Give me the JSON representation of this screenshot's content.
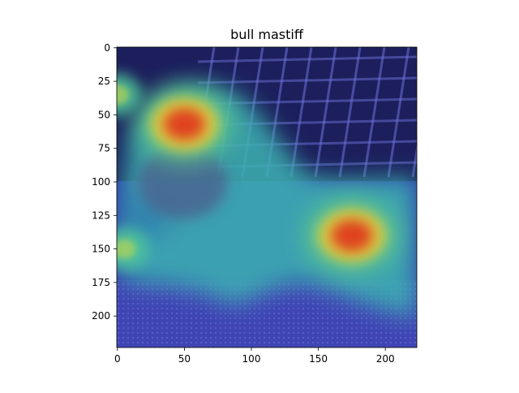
{
  "chart_data": {
    "type": "heatmap",
    "title": "bull mastiff",
    "xlabel": "",
    "ylabel": "",
    "image_extent": [
      0,
      224,
      224,
      0
    ],
    "xlim": [
      -0.5,
      223.5
    ],
    "ylim": [
      223.5,
      -0.5
    ],
    "x_ticks": [
      0,
      50,
      100,
      150,
      200
    ],
    "y_ticks": [
      0,
      25,
      50,
      75,
      100,
      125,
      150,
      175,
      200
    ],
    "x_tick_labels": [
      "0",
      "50",
      "100",
      "150",
      "200"
    ],
    "y_tick_labels": [
      "0",
      "25",
      "50",
      "75",
      "100",
      "125",
      "150",
      "175",
      "200"
    ],
    "colormap": "jet",
    "overlay": "class activation heatmap over photo of a bull mastiff dog lying in front of a metal crate",
    "hotspots": [
      {
        "x": 50,
        "y": 57,
        "intensity": 1.0
      },
      {
        "x": 175,
        "y": 140,
        "intensity": 1.0
      },
      {
        "x": 5,
        "y": 150,
        "intensity": 0.6
      },
      {
        "x": 0,
        "y": 35,
        "intensity": 0.55
      }
    ],
    "grid": false
  },
  "colors": {
    "background_low": "#2b2f9e",
    "crate_dark": "#15173f",
    "mid_cyan": "#3fc7b8",
    "hot_red": "#e03a1e",
    "hot_yellow": "#e8d13a"
  }
}
